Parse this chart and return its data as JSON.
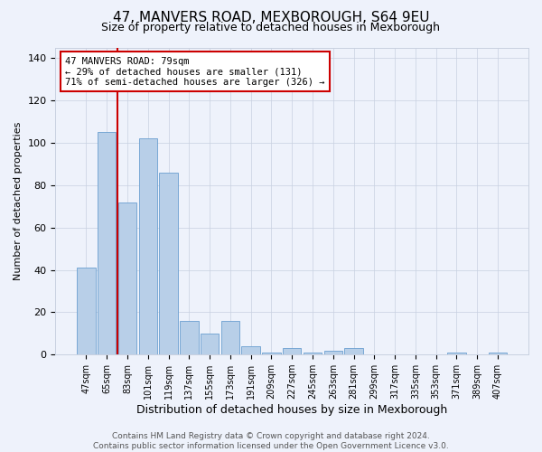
{
  "title": "47, MANVERS ROAD, MEXBOROUGH, S64 9EU",
  "subtitle": "Size of property relative to detached houses in Mexborough",
  "xlabel": "Distribution of detached houses by size in Mexborough",
  "ylabel": "Number of detached properties",
  "categories": [
    "47sqm",
    "65sqm",
    "83sqm",
    "101sqm",
    "119sqm",
    "137sqm",
    "155sqm",
    "173sqm",
    "191sqm",
    "209sqm",
    "227sqm",
    "245sqm",
    "263sqm",
    "281sqm",
    "299sqm",
    "317sqm",
    "335sqm",
    "353sqm",
    "371sqm",
    "389sqm",
    "407sqm"
  ],
  "values": [
    41,
    105,
    72,
    102,
    86,
    16,
    10,
    16,
    4,
    1,
    3,
    1,
    2,
    3,
    0,
    0,
    0,
    0,
    1,
    0,
    1
  ],
  "bar_color": "#b8cfe8",
  "bar_edge_color": "#6a9fd0",
  "property_line_color": "#cc0000",
  "annotation_text": "47 MANVERS ROAD: 79sqm\n← 29% of detached houses are smaller (131)\n71% of semi-detached houses are larger (326) →",
  "annotation_box_color": "#ffffff",
  "annotation_box_edge": "#cc0000",
  "ylim": [
    0,
    145
  ],
  "yticks": [
    0,
    20,
    40,
    60,
    80,
    100,
    120,
    140
  ],
  "footer_text": "Contains HM Land Registry data © Crown copyright and database right 2024.\nContains public sector information licensed under the Open Government Licence v3.0.",
  "background_color": "#eef2fb",
  "plot_background": "#eef2fb",
  "grid_color": "#c8d0e0",
  "title_fontsize": 11,
  "subtitle_fontsize": 9,
  "footer_fontsize": 6.5,
  "bar_width": 0.9
}
